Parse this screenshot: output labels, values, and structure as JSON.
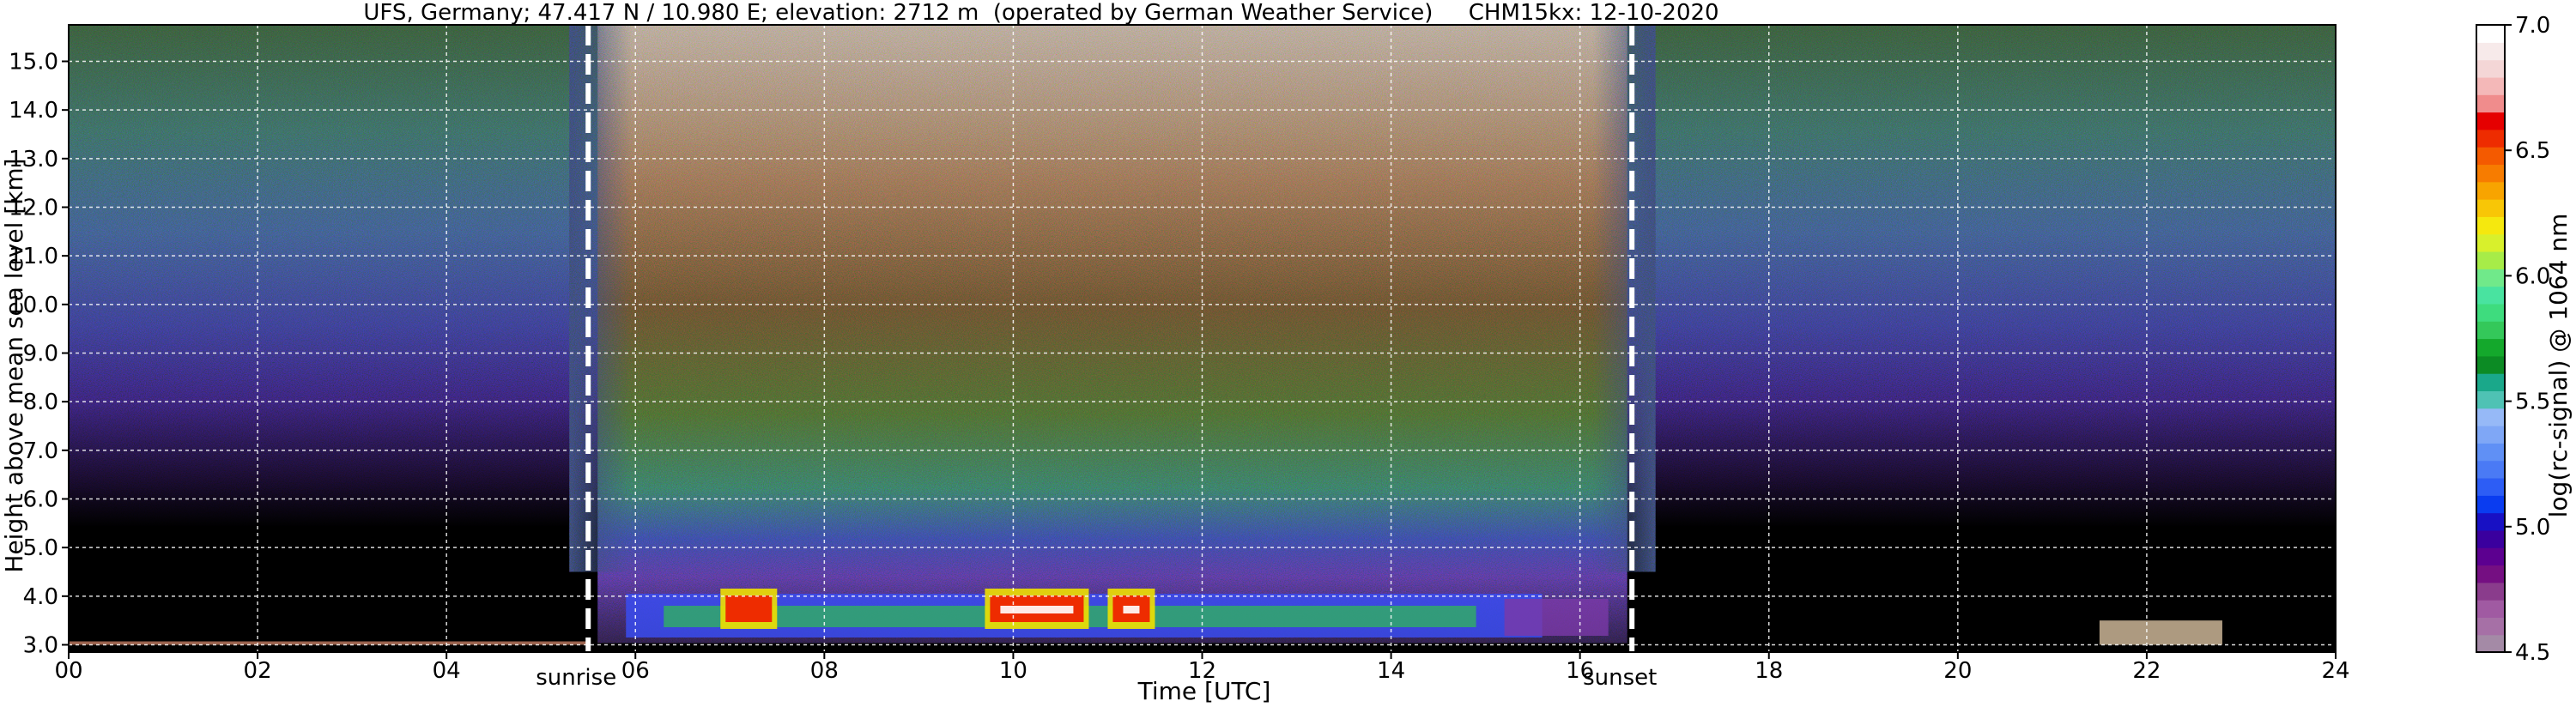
{
  "chart_data": {
    "type": "heatmap",
    "title": "UFS, Germany; 47.417 N / 10.980 E; elevation: 2712 m  (operated by German Weather Service)     CHM15kx: 12-10-2020",
    "xlabel": "Time [UTC]",
    "ylabel": "Height above mean sea level [km]",
    "xlim": [
      0,
      24
    ],
    "ylim": [
      2.85,
      15.75
    ],
    "x_ticks": [
      "00",
      "02",
      "04",
      "06",
      "08",
      "10",
      "12",
      "14",
      "16",
      "18",
      "20",
      "22",
      "24"
    ],
    "y_ticks": [
      "3.0",
      "4.0",
      "5.0",
      "6.0",
      "7.0",
      "8.0",
      "9.0",
      "10.0",
      "11.0",
      "12.0",
      "13.0",
      "14.0",
      "15.0"
    ],
    "grid": true,
    "colorbar": {
      "label": "log(rc-signal) @ 1064 nm",
      "range": [
        4.5,
        7.0
      ],
      "ticks": [
        "4.5",
        "5.0",
        "5.5",
        "6.0",
        "6.5",
        "7.0"
      ],
      "colors": [
        "#a48aa6",
        "#a670a6",
        "#a05aa2",
        "#8a3c8c",
        "#750f82",
        "#5c0090",
        "#3a009e",
        "#1810c4",
        "#0a3cf0",
        "#2d5df5",
        "#4a7af5",
        "#6090f5",
        "#7fa7f6",
        "#96b9f7",
        "#4fc2b4",
        "#1aa88a",
        "#0c8b24",
        "#14a82c",
        "#34c85a",
        "#3edc7e",
        "#49e3a0",
        "#70e98a",
        "#a7ec48",
        "#d8f02c",
        "#f5e80e",
        "#f8c606",
        "#f8a400",
        "#f77c00",
        "#f45a00",
        "#ee2c00",
        "#e50000",
        "#f08c8c",
        "#f4b8b8",
        "#f4d6d6",
        "#f7eaea",
        "#ffffff"
      ]
    },
    "events": [
      {
        "label": "sunrise",
        "time": 5.5
      },
      {
        "label": "sunset",
        "time": 16.55
      }
    ],
    "features": {
      "day_background": {
        "start": 5.6,
        "end": 16.5
      },
      "planetary_boundary_layer": {
        "bottom_km": 3.15,
        "top_km": 4.05
      },
      "strong_returns": [
        {
          "start": 6.9,
          "end": 7.5
        },
        {
          "start": 9.7,
          "end": 10.8
        },
        {
          "start": 11.0,
          "end": 11.5
        }
      ],
      "low_cloud_patch": {
        "start": 21.5,
        "end": 22.8
      }
    }
  }
}
